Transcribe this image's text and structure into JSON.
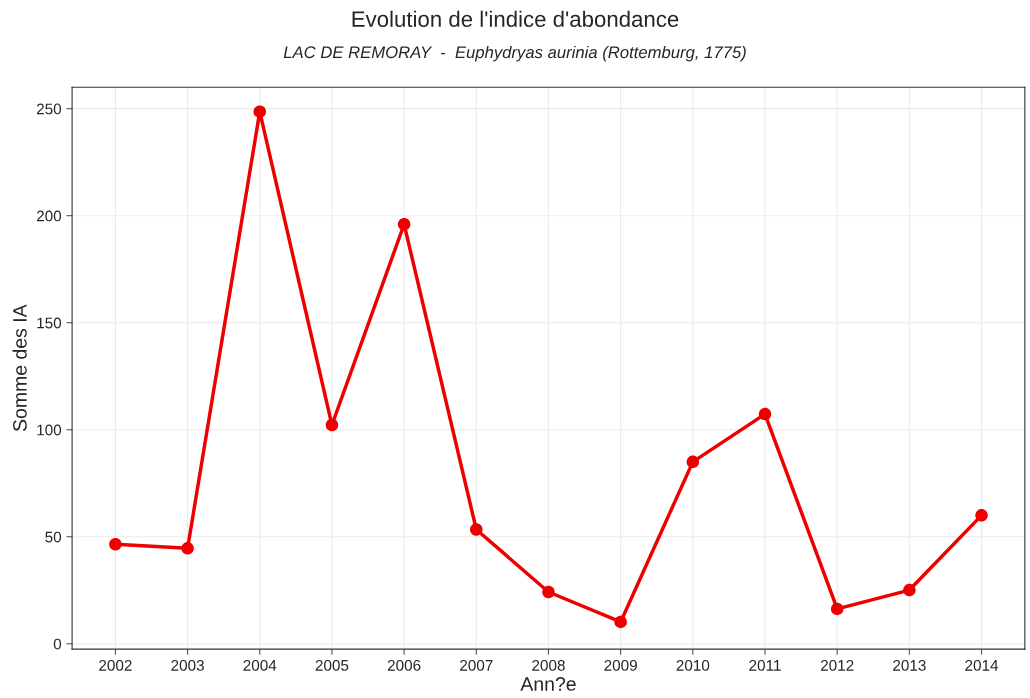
{
  "chart_data": {
    "type": "line",
    "title": "Evolution de l'indice d'abondance",
    "subtitle": "LAC DE REMORAY  -  Euphydryas aurinia (Rottemburg, 1775)",
    "xlabel": "Ann?e",
    "ylabel": "Somme des IA",
    "x": [
      2002,
      2003,
      2004,
      2005,
      2006,
      2007,
      2008,
      2009,
      2010,
      2011,
      2012,
      2013,
      2014
    ],
    "series": [
      {
        "color": "#ee0000",
        "values": [
          46.5,
          44.6,
          248.6,
          102.2,
          196,
          53.4,
          24.2,
          10.2,
          85,
          107.3,
          16.3,
          25.1,
          60
        ]
      }
    ],
    "xlim": [
      2001.4,
      2014.6
    ],
    "xticks": [
      2002,
      2003,
      2004,
      2005,
      2006,
      2007,
      2008,
      2009,
      2010,
      2011,
      2012,
      2013,
      2014
    ],
    "ylim": [
      -2.5,
      260
    ],
    "yticks": [
      0,
      50,
      100,
      150,
      200,
      250
    ],
    "grid": true,
    "marker": "circle",
    "line_style": "solid"
  }
}
